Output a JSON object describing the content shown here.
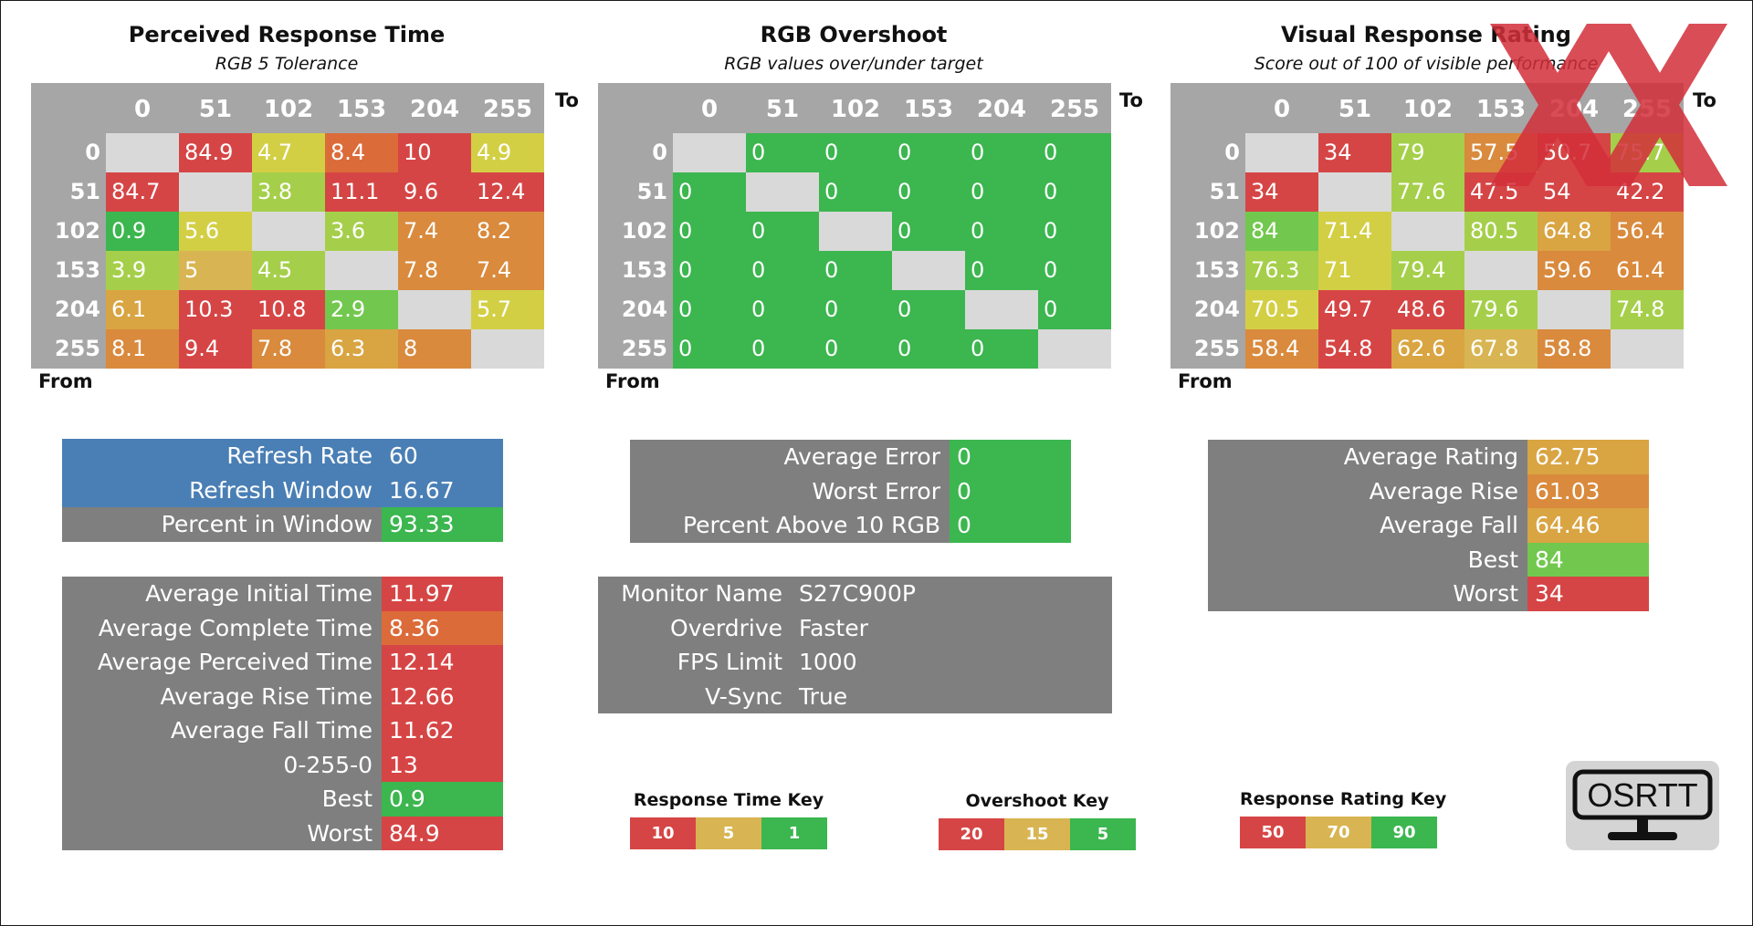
{
  "colors": {
    "red": "#d64545",
    "orange_red": "#dc6b3a",
    "orange": "#d98a3d",
    "amber": "#d9a442",
    "gold": "#d8b552",
    "yellow": "#d3cf45",
    "lime": "#a5cf4a",
    "green_lime": "#72c84e",
    "green": "#3cb64f",
    "diag": "#d9d9d9",
    "header": "#a6a6a6",
    "panel": "#7f7f7f",
    "blue": "#4a7fb5"
  },
  "chart_data": [
    {
      "type": "heatmap",
      "title": "Perceived Response Time",
      "subtitle": "RGB 5 Tolerance",
      "x_axis_label": "To",
      "y_axis_label": "From",
      "columns": [
        "0",
        "51",
        "102",
        "153",
        "204",
        "255"
      ],
      "rows": [
        "0",
        "51",
        "102",
        "153",
        "204",
        "255"
      ],
      "values": [
        [
          "",
          "84.9",
          "4.7",
          "8.4",
          "10",
          "4.9"
        ],
        [
          "84.7",
          "",
          "3.8",
          "11.1",
          "9.6",
          "12.4"
        ],
        [
          "0.9",
          "5.6",
          "",
          "3.6",
          "7.4",
          "8.2"
        ],
        [
          "3.9",
          "5",
          "4.5",
          "",
          "7.8",
          "7.4"
        ],
        [
          "6.1",
          "10.3",
          "10.8",
          "2.9",
          "",
          "5.7"
        ],
        [
          "8.1",
          "9.4",
          "7.8",
          "6.3",
          "8",
          ""
        ]
      ],
      "cell_colors": [
        [
          "diag",
          "red",
          "yellow",
          "orange_red",
          "red",
          "yellow"
        ],
        [
          "red",
          "diag",
          "lime",
          "red",
          "red",
          "red"
        ],
        [
          "green",
          "yellow",
          "diag",
          "lime",
          "orange",
          "orange"
        ],
        [
          "lime",
          "gold",
          "lime",
          "diag",
          "orange",
          "orange"
        ],
        [
          "amber",
          "red",
          "red",
          "green_lime",
          "diag",
          "yellow"
        ],
        [
          "orange",
          "red",
          "orange",
          "amber",
          "orange",
          "diag"
        ]
      ]
    },
    {
      "type": "heatmap",
      "title": "RGB Overshoot",
      "subtitle": "RGB values over/under target",
      "x_axis_label": "To",
      "y_axis_label": "From",
      "columns": [
        "0",
        "51",
        "102",
        "153",
        "204",
        "255"
      ],
      "rows": [
        "0",
        "51",
        "102",
        "153",
        "204",
        "255"
      ],
      "values": [
        [
          "",
          "0",
          "0",
          "0",
          "0",
          "0"
        ],
        [
          "0",
          "",
          "0",
          "0",
          "0",
          "0"
        ],
        [
          "0",
          "0",
          "",
          "0",
          "0",
          "0"
        ],
        [
          "0",
          "0",
          "0",
          "",
          "0",
          "0"
        ],
        [
          "0",
          "0",
          "0",
          "0",
          "",
          "0"
        ],
        [
          "0",
          "0",
          "0",
          "0",
          "0",
          ""
        ]
      ],
      "cell_colors": [
        [
          "diag",
          "green",
          "green",
          "green",
          "green",
          "green"
        ],
        [
          "green",
          "diag",
          "green",
          "green",
          "green",
          "green"
        ],
        [
          "green",
          "green",
          "diag",
          "green",
          "green",
          "green"
        ],
        [
          "green",
          "green",
          "green",
          "diag",
          "green",
          "green"
        ],
        [
          "green",
          "green",
          "green",
          "green",
          "diag",
          "green"
        ],
        [
          "green",
          "green",
          "green",
          "green",
          "green",
          "diag"
        ]
      ]
    },
    {
      "type": "heatmap",
      "title": "Visual Response Rating",
      "subtitle": "Score out of 100 of visible performance",
      "x_axis_label": "To",
      "y_axis_label": "From",
      "columns": [
        "0",
        "51",
        "102",
        "153",
        "204",
        "255"
      ],
      "rows": [
        "0",
        "51",
        "102",
        "153",
        "204",
        "255"
      ],
      "values": [
        [
          "",
          "34",
          "79",
          "57.5",
          "50.7",
          "75.7"
        ],
        [
          "34",
          "",
          "77.6",
          "47.5",
          "54",
          "42.2"
        ],
        [
          "84",
          "71.4",
          "",
          "80.5",
          "64.8",
          "56.4"
        ],
        [
          "76.3",
          "71",
          "79.4",
          "",
          "59.6",
          "61.4"
        ],
        [
          "70.5",
          "49.7",
          "48.6",
          "79.6",
          "",
          "74.8"
        ],
        [
          "58.4",
          "54.8",
          "62.6",
          "67.8",
          "58.8",
          ""
        ]
      ],
      "cell_colors": [
        [
          "diag",
          "red",
          "lime",
          "orange",
          "red",
          "lime"
        ],
        [
          "red",
          "diag",
          "lime",
          "red",
          "red",
          "red"
        ],
        [
          "green_lime",
          "yellow",
          "diag",
          "lime",
          "amber",
          "orange"
        ],
        [
          "lime",
          "yellow",
          "lime",
          "diag",
          "orange",
          "orange"
        ],
        [
          "yellow",
          "red",
          "red",
          "lime",
          "diag",
          "lime"
        ],
        [
          "orange",
          "red",
          "amber",
          "gold",
          "orange",
          "diag"
        ]
      ]
    }
  ],
  "panels": {
    "refresh": [
      {
        "label": "Refresh Rate",
        "value": "60",
        "row_color": "blue",
        "value_color": "blue"
      },
      {
        "label": "Refresh Window",
        "value": "16.67",
        "row_color": "blue",
        "value_color": "blue"
      },
      {
        "label": "Percent in Window",
        "value": "93.33",
        "row_color": "panel",
        "value_color": "green"
      }
    ],
    "overshoot_stats": [
      {
        "label": "Average Error",
        "value": "0",
        "value_color": "green"
      },
      {
        "label": "Worst Error",
        "value": "0",
        "value_color": "green"
      },
      {
        "label": "Percent Above 10 RGB",
        "value": "0",
        "value_color": "green"
      }
    ],
    "rating_stats": [
      {
        "label": "Average Rating",
        "value": "62.75",
        "value_color": "amber"
      },
      {
        "label": "Average Rise",
        "value": "61.03",
        "value_color": "orange"
      },
      {
        "label": "Average Fall",
        "value": "64.46",
        "value_color": "amber"
      },
      {
        "label": "Best",
        "value": "84",
        "value_color": "green_lime"
      },
      {
        "label": "Worst",
        "value": "34",
        "value_color": "red"
      }
    ],
    "times": [
      {
        "label": "Average Initial Time",
        "value": "11.97",
        "value_color": "red"
      },
      {
        "label": "Average Complete Time",
        "value": "8.36",
        "value_color": "orange_red"
      },
      {
        "label": "Average Perceived Time",
        "value": "12.14",
        "value_color": "red"
      },
      {
        "label": "Average Rise Time",
        "value": "12.66",
        "value_color": "red"
      },
      {
        "label": "Average Fall Time",
        "value": "11.62",
        "value_color": "red"
      },
      {
        "label": "0-255-0",
        "value": "13",
        "value_color": "red"
      },
      {
        "label": "Best",
        "value": "0.9",
        "value_color": "green"
      },
      {
        "label": "Worst",
        "value": "84.9",
        "value_color": "red"
      }
    ],
    "info": [
      {
        "label": "Monitor Name",
        "value": "S27C900P"
      },
      {
        "label": "Overdrive",
        "value": "Faster"
      },
      {
        "label": "FPS Limit",
        "value": "1000"
      },
      {
        "label": "V-Sync",
        "value": "True"
      }
    ]
  },
  "keys": [
    {
      "title": "Response Time Key",
      "items": [
        {
          "label": "10",
          "color": "red"
        },
        {
          "label": "5",
          "color": "gold"
        },
        {
          "label": "1",
          "color": "green"
        }
      ]
    },
    {
      "title": "Overshoot Key",
      "items": [
        {
          "label": "20",
          "color": "red"
        },
        {
          "label": "15",
          "color": "gold"
        },
        {
          "label": "5",
          "color": "green"
        }
      ]
    },
    {
      "title": "Response Rating Key",
      "items": [
        {
          "label": "50",
          "color": "red"
        },
        {
          "label": "70",
          "color": "gold"
        },
        {
          "label": "90",
          "color": "green"
        }
      ]
    }
  ],
  "logo": {
    "text": "OSRTT",
    "icon": "monitor-icon"
  },
  "watermark": {
    "icon": "red-x-watermark-icon",
    "color": "#d32f3a"
  }
}
